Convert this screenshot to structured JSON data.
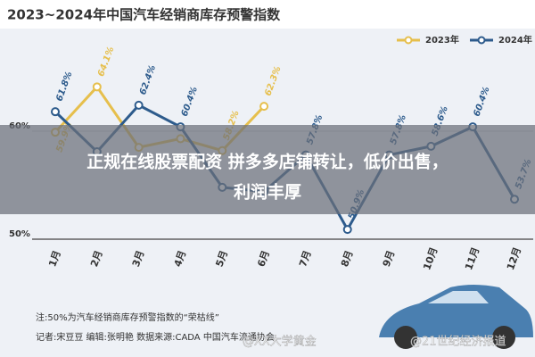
{
  "chart_data": {
    "type": "line",
    "title": "2023~2024年中国汽车经销商库存预警指数",
    "categories": [
      "1月",
      "2月",
      "3月",
      "4月",
      "5月",
      "6月",
      "7月",
      "8月",
      "9月",
      "10月",
      "11月",
      "12月"
    ],
    "series": [
      {
        "name": "2023年",
        "color": "#e6bf4c",
        "values": [
          59.9,
          64.1,
          58.5,
          59.3,
          58.2,
          62.3,
          null,
          null,
          null,
          null,
          null,
          null
        ],
        "value_labels": [
          "59.9%",
          "64.1%",
          null,
          null,
          "58.2%",
          "62.3%",
          null,
          null,
          null,
          null,
          null,
          null
        ]
      },
      {
        "name": "2024年",
        "color": "#2d5b8c",
        "values": [
          61.8,
          58.1,
          62.4,
          60.4,
          54.8,
          54.4,
          57.8,
          50.9,
          57.8,
          58.6,
          60.4,
          53.7
        ],
        "value_labels": [
          "61.8%",
          null,
          "62.4%",
          "60.4%",
          null,
          null,
          "57.8%",
          "50.9%",
          "57.8%",
          "58.6%",
          "60.4%",
          "53.7%"
        ]
      }
    ],
    "ylim": [
      50,
      69
    ],
    "yticks": [
      {
        "value": 50,
        "label": "50%"
      },
      {
        "value": 60,
        "label": "60%"
      }
    ],
    "grid": true,
    "legend": "top-right",
    "notes": [
      "注:50%为汽车经销商库存预警指数的“荣枯线”",
      "记者:宋豆豆  编辑:张明艳  数据来源:CADA 中国汽车流通协会"
    ],
    "watermarks": [
      "@XX大学黄金",
      "@21世纪经济报道"
    ],
    "banner": [
      "正规在线股票配资 拼多多店铺转让，低价出售，",
      "利润丰厚"
    ]
  }
}
